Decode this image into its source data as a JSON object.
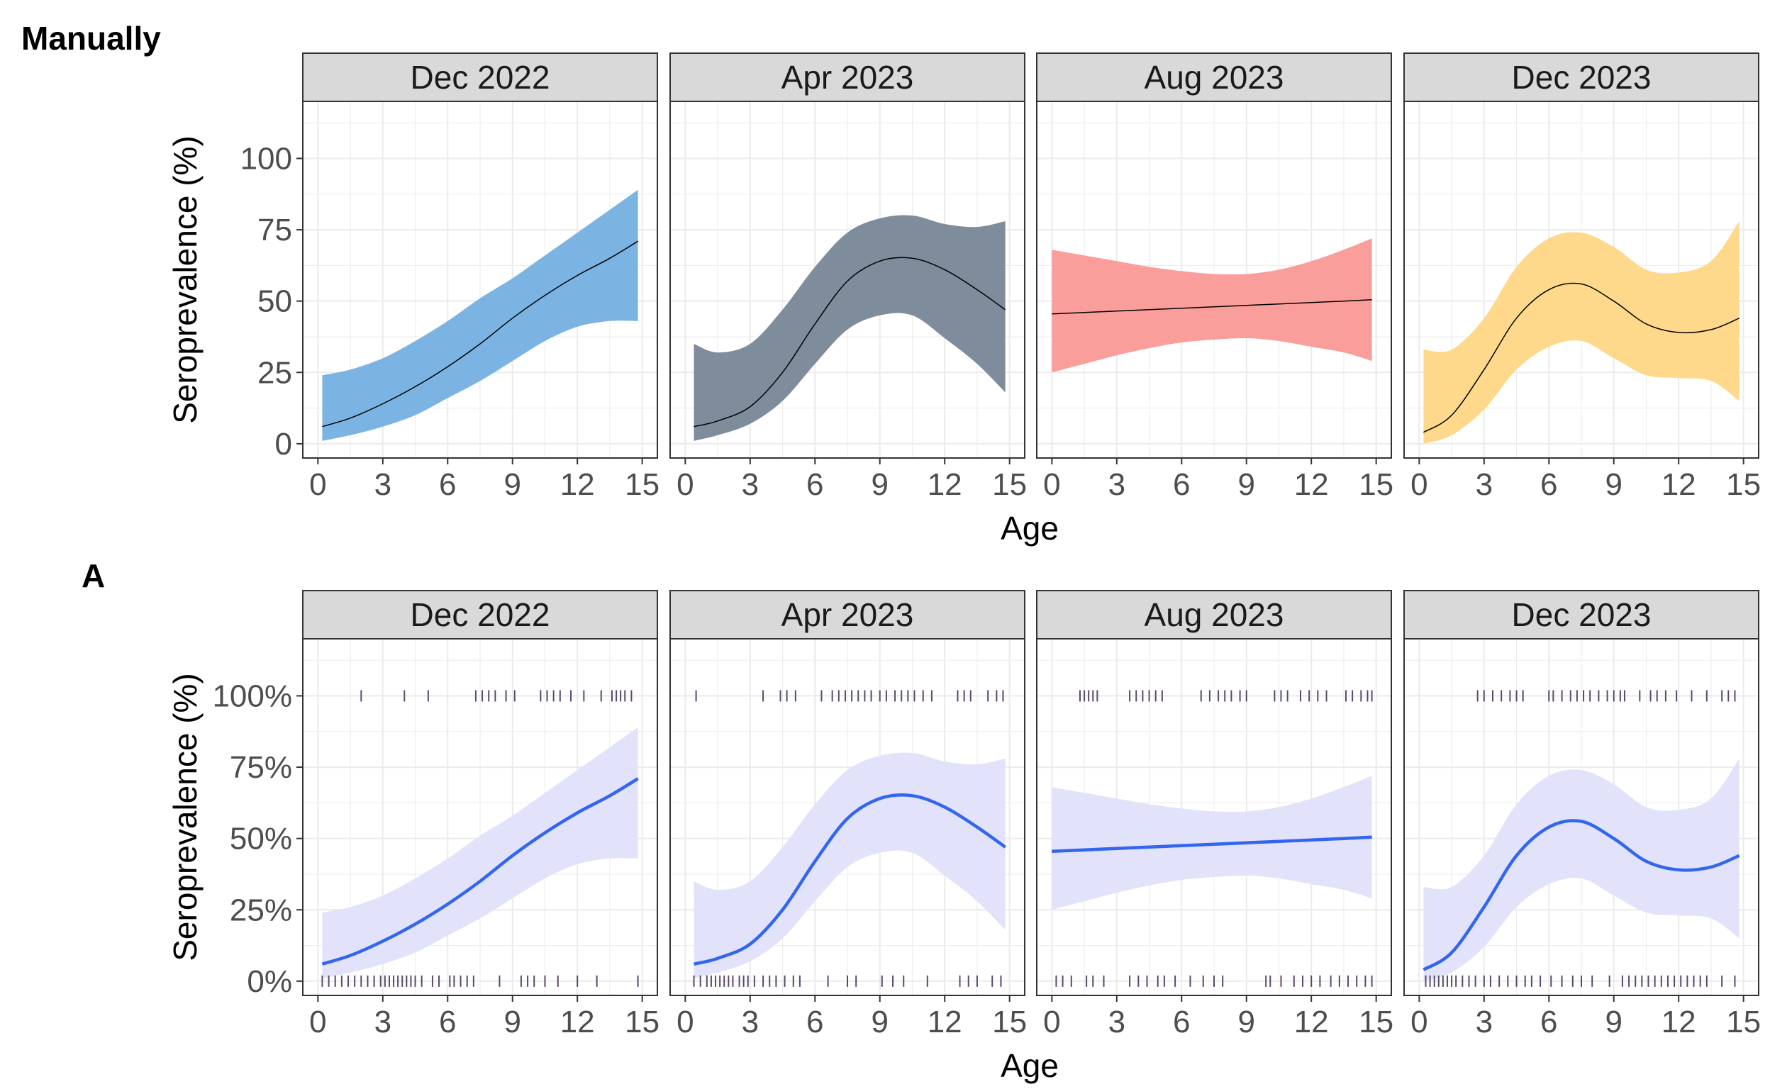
{
  "colors": {
    "strip_bg": "#d9d9d9",
    "grid": "#ebebeb",
    "panel_border": "#333333",
    "fit_line_auto": "#3366ee",
    "ribbon_auto": "#e2e2fb",
    "rug": "#5a4a6a",
    "fit_line_manual": "#000000"
  },
  "figures": [
    {
      "tag": "Manually",
      "style": "manual",
      "ylabel": "Seroprevalence (%)",
      "xlabel": "Age",
      "y_tick_labels": [
        "0",
        "25",
        "50",
        "75",
        "100"
      ],
      "x_tick_labels": [
        "0",
        "3",
        "6",
        "9",
        "12",
        "15"
      ],
      "show_rug": false
    },
    {
      "tag": "A",
      "style": "auto",
      "ylabel": "Seroprevalence (%)",
      "xlabel": "Age",
      "y_tick_labels": [
        "0%",
        "25%",
        "50%",
        "75%",
        "100%"
      ],
      "x_tick_labels": [
        "0",
        "3",
        "6",
        "9",
        "12",
        "15"
      ],
      "show_rug": true
    }
  ],
  "chart_data": [
    {
      "type": "line",
      "title": "",
      "xlabel": "Age",
      "ylabel": "Seroprevalence (%)",
      "xlim": [
        -0.7,
        15.7
      ],
      "ylim": [
        -5,
        120
      ],
      "x_ticks": [
        0,
        3,
        6,
        9,
        12,
        15
      ],
      "y_ticks": [
        0,
        25,
        50,
        75,
        100
      ],
      "grid": true,
      "facets": [
        {
          "label": "Dec 2022",
          "fill": "#7bb4e3",
          "x": [
            0.2,
            1.5,
            3,
            4.5,
            6,
            7.5,
            9,
            10.5,
            12,
            13.5,
            14.8
          ],
          "fit": [
            6,
            9,
            14,
            20,
            27,
            35,
            44,
            52,
            59,
            65,
            71
          ],
          "lower": [
            1,
            3,
            6,
            10,
            16,
            22,
            29,
            36,
            41,
            43,
            43
          ],
          "upper": [
            24,
            26,
            30,
            36,
            43,
            51,
            58,
            66,
            74,
            82,
            89
          ]
        },
        {
          "label": "Apr 2023",
          "fill": "#7f8c9c",
          "x": [
            0.4,
            1.5,
            3,
            4.5,
            6,
            7.5,
            9,
            10.5,
            12,
            13.5,
            14.8
          ],
          "fit": [
            6,
            8,
            13,
            25,
            42,
            57,
            64,
            65,
            61,
            54,
            47
          ],
          "lower": [
            1,
            3,
            7,
            15,
            28,
            40,
            45,
            45,
            37,
            28,
            18
          ],
          "upper": [
            35,
            32,
            35,
            47,
            62,
            74,
            79,
            80,
            77,
            76,
            78
          ]
        },
        {
          "label": "Aug 2023",
          "fill": "#f99e9a",
          "x": [
            0,
            1.5,
            3,
            4.5,
            6,
            7.5,
            9,
            10.5,
            12,
            13.5,
            14.8
          ],
          "fit": [
            45.5,
            46,
            46.5,
            47,
            47.5,
            48,
            48.5,
            49,
            49.5,
            50,
            50.5
          ],
          "lower": [
            25,
            28,
            31,
            33.5,
            35.5,
            36.5,
            37,
            36,
            34,
            32,
            29
          ],
          "upper": [
            68,
            66,
            64,
            62,
            60.5,
            59.5,
            59.5,
            61,
            64,
            68,
            72
          ]
        },
        {
          "label": "Dec 2023",
          "fill": "#fed98b",
          "x": [
            0.2,
            1.5,
            3,
            4.5,
            6,
            7.5,
            9,
            10.5,
            12,
            13.5,
            14.8
          ],
          "fit": [
            4,
            10,
            26,
            44,
            54,
            56,
            50,
            42,
            39,
            40,
            44
          ],
          "lower": [
            0,
            3,
            12,
            26,
            34,
            36,
            30,
            24,
            23,
            22,
            15
          ],
          "upper": [
            33,
            33,
            44,
            62,
            72,
            74,
            69,
            61,
            60,
            64,
            78
          ]
        }
      ]
    },
    {
      "type": "line",
      "title": "",
      "xlabel": "Age",
      "ylabel": "Seroprevalence (%)",
      "xlim": [
        -0.7,
        15.7
      ],
      "ylim": [
        -5,
        120
      ],
      "x_ticks": [
        0,
        3,
        6,
        9,
        12,
        15
      ],
      "y_ticks": [
        0,
        25,
        50,
        75,
        100
      ],
      "y_tick_format": "percent",
      "grid": true,
      "facets": [
        {
          "label": "Dec 2022",
          "x": [
            0.2,
            1.5,
            3,
            4.5,
            6,
            7.5,
            9,
            10.5,
            12,
            13.5,
            14.8
          ],
          "fit": [
            6,
            9,
            14,
            20,
            27,
            35,
            44,
            52,
            59,
            65,
            71
          ],
          "lower": [
            1,
            3,
            6,
            10,
            16,
            22,
            29,
            36,
            41,
            43,
            43
          ],
          "upper": [
            24,
            26,
            30,
            36,
            43,
            51,
            58,
            66,
            74,
            82,
            89
          ],
          "rug_positive": [
            2.0,
            4.0,
            5.1,
            7.3,
            7.6,
            7.9,
            8.2,
            8.7,
            9.1,
            10.3,
            10.6,
            10.9,
            11.2,
            11.7,
            12.3,
            13.1,
            13.6,
            13.8,
            14.0,
            14.2,
            14.5
          ],
          "rug_negative": [
            0.2,
            0.5,
            0.8,
            1.1,
            1.4,
            1.7,
            2.0,
            2.3,
            2.6,
            2.9,
            3.1,
            3.3,
            3.5,
            3.7,
            3.9,
            4.1,
            4.3,
            4.5,
            4.8,
            5.3,
            5.6,
            6.1,
            6.3,
            6.6,
            6.9,
            7.2,
            8.4,
            9.4,
            9.7,
            10.0,
            10.5,
            11.1,
            12.0,
            12.9,
            14.8
          ]
        },
        {
          "label": "Apr 2023",
          "x": [
            0.4,
            1.5,
            3,
            4.5,
            6,
            7.5,
            9,
            10.5,
            12,
            13.5,
            14.8
          ],
          "fit": [
            6,
            8,
            13,
            25,
            42,
            57,
            64,
            65,
            61,
            54,
            47
          ],
          "lower": [
            1,
            3,
            7,
            15,
            28,
            40,
            45,
            45,
            37,
            28,
            18
          ],
          "upper": [
            35,
            32,
            35,
            47,
            62,
            74,
            79,
            80,
            77,
            76,
            78
          ],
          "rug_positive": [
            0.5,
            3.6,
            4.4,
            4.7,
            5.1,
            6.3,
            6.8,
            7.1,
            7.4,
            7.7,
            8.0,
            8.3,
            8.6,
            9.0,
            9.3,
            9.7,
            10.0,
            10.3,
            10.6,
            11.0,
            11.4,
            12.6,
            12.9,
            13.2,
            14.0,
            14.4,
            14.7
          ],
          "rug_negative": [
            0.4,
            0.7,
            1.0,
            1.2,
            1.4,
            1.6,
            1.8,
            2.0,
            2.2,
            2.5,
            2.7,
            2.9,
            3.2,
            3.6,
            3.9,
            4.2,
            4.6,
            5.0,
            5.3,
            6.6,
            7.5,
            7.9,
            9.1,
            9.6,
            10.1,
            11.2,
            12.7,
            13.1,
            13.5,
            14.2,
            14.6
          ]
        },
        {
          "label": "Aug 2023",
          "x": [
            0,
            1.5,
            3,
            4.5,
            6,
            7.5,
            9,
            10.5,
            12,
            13.5,
            14.8
          ],
          "fit": [
            45.5,
            46,
            46.5,
            47,
            47.5,
            48,
            48.5,
            49,
            49.5,
            50,
            50.5
          ],
          "lower": [
            25,
            28,
            31,
            33.5,
            35.5,
            36.5,
            37,
            36,
            34,
            32,
            29
          ],
          "upper": [
            68,
            66,
            64,
            62,
            60.5,
            59.5,
            59.5,
            61,
            64,
            68,
            72
          ],
          "rug_positive": [
            1.3,
            1.5,
            1.7,
            1.9,
            2.1,
            3.6,
            3.9,
            4.2,
            4.5,
            4.8,
            5.1,
            6.9,
            7.3,
            7.7,
            8.0,
            8.3,
            8.7,
            9.0,
            10.3,
            10.6,
            10.9,
            11.5,
            11.9,
            12.3,
            12.7,
            13.6,
            13.9,
            14.3,
            14.6,
            14.8
          ],
          "rug_negative": [
            0.2,
            0.5,
            0.9,
            1.6,
            1.9,
            2.4,
            3.6,
            4.0,
            4.4,
            4.9,
            5.2,
            5.7,
            6.4,
            7.0,
            7.5,
            7.9,
            9.9,
            10.1,
            10.6,
            11.2,
            11.6,
            12.0,
            12.4,
            12.9,
            13.3,
            13.7,
            14.1,
            14.5,
            14.8
          ]
        },
        {
          "label": "Dec 2023",
          "x": [
            0.2,
            1.5,
            3,
            4.5,
            6,
            7.5,
            9,
            10.5,
            12,
            13.5,
            14.8
          ],
          "fit": [
            4,
            10,
            26,
            44,
            54,
            56,
            50,
            42,
            39,
            40,
            44
          ],
          "lower": [
            0,
            3,
            12,
            26,
            34,
            36,
            30,
            24,
            23,
            22,
            15
          ],
          "upper": [
            33,
            33,
            44,
            62,
            72,
            74,
            69,
            61,
            60,
            64,
            78
          ],
          "rug_positive": [
            2.7,
            3.0,
            3.4,
            3.8,
            4.2,
            4.5,
            4.8,
            6.0,
            6.2,
            6.6,
            7.0,
            7.3,
            7.6,
            7.9,
            8.3,
            8.7,
            9.0,
            9.3,
            9.5,
            10.2,
            10.7,
            11.0,
            11.4,
            11.9,
            12.6,
            13.3,
            14.0,
            14.3,
            14.6
          ],
          "rug_negative": [
            0.3,
            0.5,
            0.7,
            0.9,
            1.1,
            1.3,
            1.5,
            1.7,
            2.0,
            2.3,
            2.6,
            3.0,
            3.3,
            3.7,
            4.1,
            4.5,
            4.9,
            5.2,
            5.6,
            6.1,
            6.6,
            7.1,
            7.5,
            8.0,
            8.8,
            9.4,
            9.7,
            10.0,
            10.3,
            10.6,
            10.9,
            11.2,
            11.5,
            11.8,
            12.1,
            12.4,
            12.7,
            13.0,
            13.3,
            14.0,
            14.6
          ]
        }
      ]
    }
  ]
}
